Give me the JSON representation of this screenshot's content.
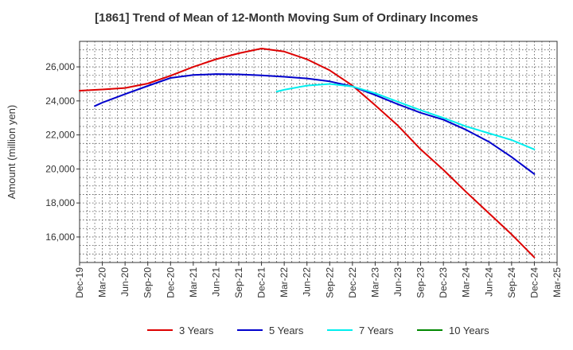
{
  "chart_data": {
    "type": "line",
    "title": "[1861]  Trend of Mean of 12-Month Moving Sum of Ordinary Incomes",
    "xlabel": "",
    "ylabel": "Amount (million yen)",
    "ylim": [
      14500,
      27500
    ],
    "y_ticks": [
      16000,
      18000,
      20000,
      22000,
      24000,
      26000
    ],
    "y_tick_labels": [
      "16,000",
      "18,000",
      "20,000",
      "22,000",
      "24,000",
      "26,000"
    ],
    "x_tick_labels": [
      "Dec-19",
      "Mar-20",
      "Jun-20",
      "Sep-20",
      "Dec-20",
      "Mar-21",
      "Jun-21",
      "Sep-21",
      "Dec-21",
      "Mar-22",
      "Jun-22",
      "Sep-22",
      "Dec-22",
      "Mar-23",
      "Jun-23",
      "Sep-23",
      "Dec-23",
      "Mar-24",
      "Jun-24",
      "Sep-24",
      "Dec-24",
      "Mar-25"
    ],
    "grid": true,
    "legend_position": "bottom",
    "series": [
      {
        "name": "3 Years",
        "color": "#dd0000",
        "points": [
          [
            0,
            24600
          ],
          [
            1,
            24670
          ],
          [
            2,
            24760
          ],
          [
            3,
            25020
          ],
          [
            4,
            25480
          ],
          [
            5,
            26000
          ],
          [
            6,
            26450
          ],
          [
            7,
            26800
          ],
          [
            8,
            27080
          ],
          [
            9,
            26900
          ],
          [
            10,
            26450
          ],
          [
            11,
            25800
          ],
          [
            12,
            24900
          ],
          [
            13,
            23750
          ],
          [
            14,
            22550
          ],
          [
            15,
            21150
          ],
          [
            16,
            19950
          ],
          [
            17,
            18650
          ],
          [
            18,
            17400
          ],
          [
            19,
            16150
          ],
          [
            20,
            14800
          ]
        ]
      },
      {
        "name": "5 Years",
        "color": "#0000cc",
        "points": [
          [
            0.67,
            23700
          ],
          [
            1,
            23900
          ],
          [
            2,
            24400
          ],
          [
            3,
            24880
          ],
          [
            4,
            25350
          ],
          [
            5,
            25520
          ],
          [
            6,
            25580
          ],
          [
            7,
            25560
          ],
          [
            8,
            25500
          ],
          [
            9,
            25420
          ],
          [
            10,
            25320
          ],
          [
            11,
            25150
          ],
          [
            12,
            24850
          ],
          [
            13,
            24350
          ],
          [
            14,
            23800
          ],
          [
            15,
            23300
          ],
          [
            16,
            22900
          ],
          [
            17,
            22300
          ],
          [
            18,
            21600
          ],
          [
            19,
            20700
          ],
          [
            20,
            19700
          ]
        ]
      },
      {
        "name": "7 Years",
        "color": "#00eeee",
        "points": [
          [
            8.67,
            24550
          ],
          [
            9,
            24650
          ],
          [
            10,
            24900
          ],
          [
            11,
            25000
          ],
          [
            12,
            24850
          ],
          [
            13,
            24450
          ],
          [
            14,
            23950
          ],
          [
            15,
            23450
          ],
          [
            16,
            23000
          ],
          [
            17,
            22500
          ],
          [
            18,
            22100
          ],
          [
            19,
            21700
          ],
          [
            20,
            21150
          ]
        ]
      },
      {
        "name": "10 Years",
        "color": "#008800",
        "points": []
      }
    ]
  }
}
